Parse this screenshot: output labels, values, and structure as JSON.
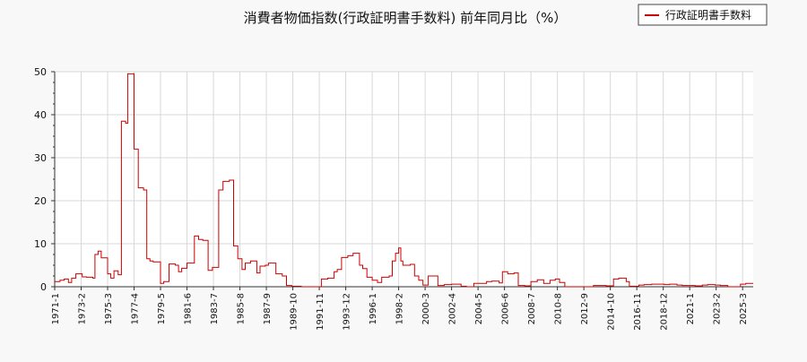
{
  "chart_data": {
    "type": "line",
    "title": "消費者物価指数(行政証明書手数料) 前年同月比（%）",
    "xlabel": "",
    "ylabel": "",
    "ylim": [
      0,
      50
    ],
    "yticks": [
      0,
      10,
      20,
      30,
      40,
      50
    ],
    "xlim": [
      "1971-01",
      "2026-01"
    ],
    "xticks": [
      "1971-1",
      "1973-2",
      "1975-3",
      "1977-4",
      "1979-5",
      "1981-6",
      "1983-7",
      "1985-8",
      "1987-9",
      "1989-10",
      "1991-11",
      "1993-12",
      "1996-1",
      "1998-2",
      "2000-3",
      "2002-4",
      "2004-5",
      "2006-6",
      "2008-7",
      "2010-8",
      "2012-9",
      "2014-10",
      "2016-11",
      "2018-12",
      "2021-1",
      "2023-2",
      "2025-3"
    ],
    "grid": true,
    "legend_position": "top-right",
    "line_color": "#cc0000",
    "series": [
      {
        "name": "行政証明書手数料",
        "points": [
          [
            "1971-01",
            1.2
          ],
          [
            "1971-06",
            1.5
          ],
          [
            "1971-10",
            1.8
          ],
          [
            "1972-02",
            1.0
          ],
          [
            "1972-05",
            2.0
          ],
          [
            "1972-09",
            3.0
          ],
          [
            "1973-03",
            2.3
          ],
          [
            "1973-07",
            2.2
          ],
          [
            "1974-01",
            2.0
          ],
          [
            "1974-03",
            7.5
          ],
          [
            "1974-06",
            8.3
          ],
          [
            "1974-09",
            6.7
          ],
          [
            "1975-03",
            3.0
          ],
          [
            "1975-06",
            2.0
          ],
          [
            "1975-09",
            3.7
          ],
          [
            "1976-01",
            2.8
          ],
          [
            "1976-04",
            38.5
          ],
          [
            "1976-08",
            38.0
          ],
          [
            "1976-10",
            49.5
          ],
          [
            "1977-04",
            32.0
          ],
          [
            "1977-08",
            23.0
          ],
          [
            "1978-01",
            22.5
          ],
          [
            "1978-04",
            6.5
          ],
          [
            "1978-07",
            6.0
          ],
          [
            "1978-10",
            5.8
          ],
          [
            "1979-05",
            0.8
          ],
          [
            "1979-08",
            1.2
          ],
          [
            "1980-01",
            5.3
          ],
          [
            "1980-07",
            5.0
          ],
          [
            "1980-10",
            3.5
          ],
          [
            "1981-01",
            4.3
          ],
          [
            "1981-06",
            5.5
          ],
          [
            "1982-01",
            11.8
          ],
          [
            "1982-05",
            11.0
          ],
          [
            "1982-09",
            10.8
          ],
          [
            "1983-02",
            3.8
          ],
          [
            "1983-06",
            4.5
          ],
          [
            "1983-12",
            22.5
          ],
          [
            "1984-04",
            24.5
          ],
          [
            "1984-10",
            24.8
          ],
          [
            "1985-02",
            9.5
          ],
          [
            "1985-06",
            6.5
          ],
          [
            "1985-10",
            4.0
          ],
          [
            "1986-01",
            5.5
          ],
          [
            "1986-06",
            6.0
          ],
          [
            "1986-12",
            3.2
          ],
          [
            "1987-03",
            4.8
          ],
          [
            "1987-08",
            5.0
          ],
          [
            "1987-11",
            5.5
          ],
          [
            "1988-06",
            3.0
          ],
          [
            "1988-12",
            2.5
          ],
          [
            "1989-04",
            0.3
          ],
          [
            "1989-09",
            0.1
          ],
          [
            "1990-06",
            0.0
          ],
          [
            "1991-06",
            0.0
          ],
          [
            "1992-01",
            1.8
          ],
          [
            "1992-07",
            2.0
          ],
          [
            "1993-01",
            3.5
          ],
          [
            "1993-04",
            4.0
          ],
          [
            "1993-08",
            6.8
          ],
          [
            "1994-02",
            7.2
          ],
          [
            "1994-07",
            7.8
          ],
          [
            "1995-01",
            5.0
          ],
          [
            "1995-04",
            4.2
          ],
          [
            "1995-08",
            2.2
          ],
          [
            "1996-01",
            1.5
          ],
          [
            "1996-06",
            1.0
          ],
          [
            "1996-10",
            2.2
          ],
          [
            "1997-05",
            2.5
          ],
          [
            "1997-08",
            6.0
          ],
          [
            "1997-11",
            7.8
          ],
          [
            "1998-02",
            9.0
          ],
          [
            "1998-04",
            6.0
          ],
          [
            "1998-06",
            5.0
          ],
          [
            "1999-01",
            5.2
          ],
          [
            "1999-05",
            2.5
          ],
          [
            "1999-09",
            1.5
          ],
          [
            "2000-01",
            0.4
          ],
          [
            "2000-06",
            2.5
          ],
          [
            "2001-03",
            0.3
          ],
          [
            "2001-09",
            0.5
          ],
          [
            "2002-04",
            0.6
          ],
          [
            "2003-01",
            0.1
          ],
          [
            "2003-06",
            0.0
          ],
          [
            "2004-01",
            0.8
          ],
          [
            "2004-06",
            0.8
          ],
          [
            "2005-01",
            1.2
          ],
          [
            "2005-06",
            1.3
          ],
          [
            "2006-01",
            0.9
          ],
          [
            "2006-04",
            3.5
          ],
          [
            "2006-09",
            3.0
          ],
          [
            "2007-03",
            3.2
          ],
          [
            "2007-07",
            0.3
          ],
          [
            "2008-01",
            0.2
          ],
          [
            "2008-07",
            1.2
          ],
          [
            "2009-01",
            1.6
          ],
          [
            "2009-07",
            0.8
          ],
          [
            "2010-01",
            1.5
          ],
          [
            "2010-06",
            1.8
          ],
          [
            "2010-10",
            1.0
          ],
          [
            "2011-03",
            0.0
          ],
          [
            "2013-01",
            0.0
          ],
          [
            "2013-06",
            0.3
          ],
          [
            "2014-06",
            0.2
          ],
          [
            "2015-01",
            1.8
          ],
          [
            "2015-06",
            2.0
          ],
          [
            "2016-01",
            1.2
          ],
          [
            "2016-04",
            0.1
          ],
          [
            "2017-01",
            0.4
          ],
          [
            "2017-06",
            0.5
          ],
          [
            "2018-01",
            0.6
          ],
          [
            "2019-01",
            0.5
          ],
          [
            "2019-06",
            0.6
          ],
          [
            "2020-01",
            0.4
          ],
          [
            "2020-06",
            0.3
          ],
          [
            "2021-06",
            0.2
          ],
          [
            "2022-01",
            0.4
          ],
          [
            "2022-06",
            0.5
          ],
          [
            "2023-01",
            0.4
          ],
          [
            "2023-06",
            0.3
          ],
          [
            "2024-01",
            0.0
          ],
          [
            "2025-01",
            0.6
          ],
          [
            "2025-06",
            0.8
          ],
          [
            "2026-01",
            0.8
          ]
        ]
      }
    ]
  }
}
